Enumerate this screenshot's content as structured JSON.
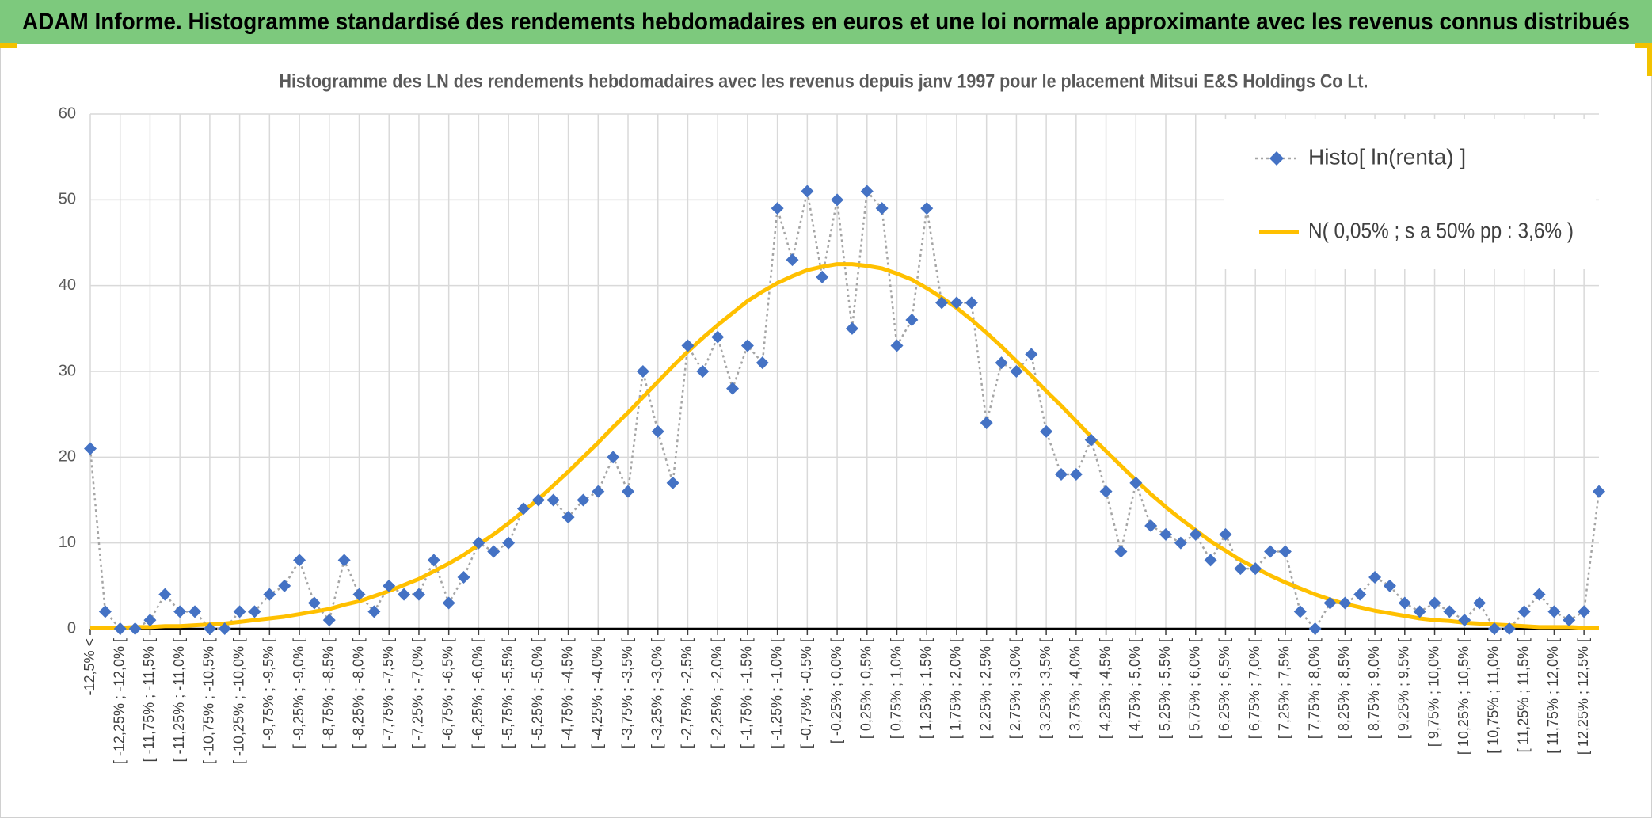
{
  "header": {
    "title": "ADAM Informe. Histogramme standardisé des rendements hebdomadaires en euros et une loi normale approximante avec les revenus connus distribués"
  },
  "chart_data": {
    "type": "line",
    "title": "Histogramme des LN des rendements hebdomadaires avec les revenus depuis janv 1997 pour le placement Mitsui E&S Holdings Co Lt.",
    "categories": [
      "-12,5% <",
      null,
      "[ -12,25% ; -12,0% [",
      null,
      "[ -11,75% ; -11,5% [",
      null,
      "[ -11,25% ; -11,0% [",
      null,
      "[ -10,75% ; -10,5% [",
      null,
      "[ -10,25% ; -10,0% [",
      null,
      "[ -9,75% ; -9,5% [",
      null,
      "[ -9,25% ; -9,0% [",
      null,
      "[ -8,75% ; -8,5% [",
      null,
      "[ -8,25% ; -8,0% [",
      null,
      "[ -7,75% ; -7,5% [",
      null,
      "[ -7,25% ; -7,0% [",
      null,
      "[ -6,75% ; -6,5% [",
      null,
      "[ -6,25% ; -6,0% [",
      null,
      "[ -5,75% ; -5,5% [",
      null,
      "[ -5,25% ; -5,0% [",
      null,
      "[ -4,75% ; -4,5% [",
      null,
      "[ -4,25% ; -4,0% [",
      null,
      "[ -3,75% ; -3,5% [",
      null,
      "[ -3,25% ; -3,0% [",
      null,
      "[ -2,75% ; -2,5% [",
      null,
      "[ -2,25% ; -2,0% [",
      null,
      "[ -1,75% ; -1,5% [",
      null,
      "[ -1,25% ; -1,0% [",
      null,
      "[ -0,75% ; -0,5% [",
      null,
      "[ -0,25% ; 0,0% [",
      null,
      "[ 0,25% ; 0,5% [",
      null,
      "[ 0,75% ; 1,0% [",
      null,
      "[ 1,25% ; 1,5% [",
      null,
      "[ 1,75% ; 2,0% [",
      null,
      "[ 2,25% ; 2,5% [",
      null,
      "[ 2,75% ; 3,0% [",
      null,
      "[ 3,25% ; 3,5% [",
      null,
      "[ 3,75% ; 4,0% [",
      null,
      "[ 4,25% ; 4,5% [",
      null,
      "[ 4,75% ; 5,0% [",
      null,
      "[ 5,25% ; 5,5% [",
      null,
      "[ 5,75% ; 6,0% [",
      null,
      "[ 6,25% ; 6,5% [",
      null,
      "[ 6,75% ; 7,0% [",
      null,
      "[ 7,25% ; 7,5% [",
      null,
      "[ 7,75% ; 8,0% [",
      null,
      "[ 8,25% ; 8,5% [",
      null,
      "[ 8,75% ; 9,0% [",
      null,
      "[ 9,25% ; 9,5% [",
      null,
      "[ 9,75% ; 10,0% [",
      null,
      "[ 10,25% ; 10,5% [",
      null,
      "[ 10,75% ; 11,0% [",
      null,
      "[ 11,25% ; 11,5% [",
      null,
      "[ 11,75% ; 12,0% [",
      null,
      "[ 12,25% ; 12,5% [",
      null
    ],
    "series": [
      {
        "name": "Histo[ ln(renta) ]",
        "color": "#4472c4",
        "line_color": "#a5a5a5",
        "marker": "diamond",
        "values": [
          21,
          2,
          0,
          0,
          1,
          4,
          2,
          2,
          0,
          0,
          2,
          2,
          4,
          5,
          8,
          3,
          1,
          8,
          4,
          2,
          5,
          4,
          4,
          8,
          3,
          6,
          10,
          9,
          10,
          14,
          15,
          15,
          13,
          15,
          16,
          20,
          16,
          30,
          23,
          17,
          33,
          30,
          34,
          28,
          33,
          31,
          49,
          43,
          51,
          41,
          50,
          35,
          51,
          49,
          33,
          36,
          49,
          38,
          38,
          38,
          24,
          31,
          30,
          32,
          23,
          18,
          18,
          22,
          16,
          9,
          17,
          12,
          11,
          10,
          11,
          8,
          11,
          7,
          7,
          9,
          9,
          2,
          0,
          3,
          3,
          4,
          6,
          5,
          3,
          2,
          3,
          2,
          1,
          3,
          0,
          0,
          2,
          4,
          2,
          1,
          2,
          16
        ]
      },
      {
        "name": "N( 0,05% ; s a 50% pp : 3,6% )",
        "color": "#ffc000",
        "values": [
          0.1,
          0.1,
          0.1,
          0.2,
          0.2,
          0.3,
          0.3,
          0.4,
          0.5,
          0.6,
          0.8,
          1.0,
          1.2,
          1.4,
          1.7,
          2.0,
          2.3,
          2.8,
          3.2,
          3.8,
          4.4,
          5.1,
          5.8,
          6.7,
          7.6,
          8.6,
          9.8,
          11.0,
          12.3,
          13.7,
          15.1,
          16.7,
          18.3,
          20.0,
          21.7,
          23.5,
          25.2,
          27.0,
          28.8,
          30.6,
          32.3,
          33.9,
          35.4,
          36.8,
          38.2,
          39.3,
          40.3,
          41.1,
          41.8,
          42.2,
          42.5,
          42.5,
          42.3,
          42.0,
          41.4,
          40.7,
          39.7,
          38.6,
          37.4,
          36.0,
          34.5,
          32.9,
          31.2,
          29.5,
          27.7,
          26.0,
          24.2,
          22.4,
          20.7,
          19.0,
          17.3,
          15.7,
          14.2,
          12.8,
          11.5,
          10.2,
          9.1,
          8.0,
          7.1,
          6.2,
          5.4,
          4.7,
          4.0,
          3.4,
          2.9,
          2.5,
          2.1,
          1.8,
          1.5,
          1.2,
          1.0,
          0.9,
          0.7,
          0.6,
          0.5,
          0.4,
          0.3,
          0.2,
          0.2,
          0.2,
          0.1,
          0.1
        ]
      }
    ],
    "ylim": [
      0,
      60
    ],
    "yticks": [
      0,
      10,
      20,
      30,
      40,
      50,
      60
    ],
    "grid": true,
    "legend": "top-right"
  }
}
